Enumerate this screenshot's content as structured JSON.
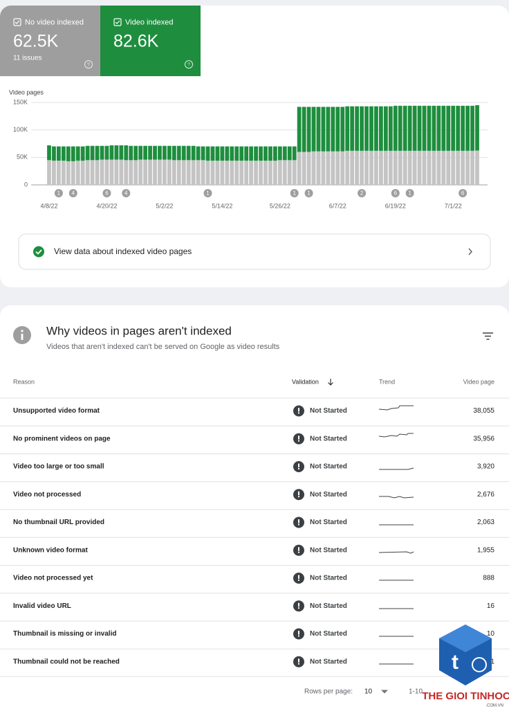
{
  "summary": [
    {
      "value": "62.5K",
      "note": "11 issues"
    },
    {
      "value": "82.6K"
    }
  ],
  "chart_data": {
    "type": "bar",
    "stacked": true,
    "y_label": "Video pages",
    "categories": [
      "4/8/22",
      null,
      null,
      null,
      null,
      null,
      null,
      null,
      null,
      null,
      null,
      null,
      "4/20/22",
      null,
      null,
      null,
      null,
      null,
      null,
      null,
      null,
      null,
      null,
      null,
      "5/2/22",
      null,
      null,
      null,
      null,
      null,
      null,
      null,
      null,
      null,
      null,
      null,
      "5/14/22",
      null,
      null,
      null,
      null,
      null,
      null,
      null,
      null,
      null,
      null,
      null,
      "5/26/22",
      null,
      null,
      null,
      null,
      null,
      null,
      null,
      null,
      null,
      null,
      null,
      "6/7/22",
      null,
      null,
      null,
      null,
      null,
      null,
      null,
      null,
      null,
      null,
      null,
      "6/19/22",
      null,
      null,
      null,
      null,
      null,
      null,
      null,
      null,
      null,
      null,
      null,
      "7/1/22",
      null,
      null,
      null,
      null,
      null
    ],
    "series": [
      {
        "name": "No video indexed",
        "color": "#c4c4c4",
        "values": [
          45000,
          44000,
          44000,
          44000,
          43000,
          43000,
          44000,
          44000,
          45000,
          45000,
          45000,
          46000,
          46000,
          46000,
          46000,
          46000,
          45000,
          45000,
          45000,
          46000,
          46000,
          46000,
          46000,
          46000,
          46000,
          46000,
          45000,
          45000,
          45000,
          45000,
          45000,
          45000,
          45000,
          44000,
          44000,
          44000,
          44000,
          44000,
          44000,
          44000,
          44000,
          44000,
          44000,
          44000,
          44000,
          44000,
          44000,
          44000,
          45000,
          45000,
          45000,
          45000,
          60000,
          60000,
          60000,
          61000,
          61000,
          61000,
          61000,
          61000,
          61000,
          61000,
          62000,
          62000,
          62000,
          62000,
          62000,
          62000,
          62000,
          62000,
          62000,
          62000,
          62000,
          62000,
          62000,
          62000,
          62000,
          62000,
          62000,
          62000,
          62000,
          62000,
          62000,
          62000,
          62000,
          62000,
          62000,
          62000,
          62000,
          62500
        ]
      },
      {
        "name": "Video indexed",
        "color": "#1e8e3e",
        "values": [
          27000,
          26000,
          26000,
          26000,
          27000,
          27000,
          26000,
          26000,
          26000,
          26000,
          26000,
          25000,
          25000,
          26000,
          26000,
          26000,
          27000,
          26000,
          26000,
          25000,
          25000,
          25000,
          25000,
          25000,
          25000,
          25000,
          26000,
          26000,
          26000,
          26000,
          26000,
          25000,
          25000,
          26000,
          26000,
          26000,
          26000,
          26000,
          26000,
          26000,
          26000,
          26000,
          26000,
          26000,
          26000,
          26000,
          26000,
          26000,
          25000,
          25000,
          25000,
          25000,
          82000,
          82000,
          82000,
          81000,
          81000,
          81000,
          81000,
          81000,
          81000,
          81000,
          81000,
          81000,
          81000,
          81000,
          81000,
          81000,
          81000,
          81000,
          81000,
          81000,
          82000,
          82000,
          82000,
          82000,
          82000,
          82000,
          82000,
          82000,
          82000,
          82000,
          82000,
          82000,
          82000,
          82000,
          82000,
          82000,
          82000,
          82600
        ]
      }
    ],
    "ylim": [
      0,
      150000
    ],
    "yticks": [
      0,
      {
        "value": 50000,
        "label": "50K"
      },
      {
        "value": 100000,
        "label": "100K"
      },
      {
        "value": 150000,
        "label": "150K"
      }
    ],
    "grid": true,
    "annotations": [
      {
        "at": 2,
        "label": 1
      },
      {
        "at": 5,
        "label": 4
      },
      {
        "at": 12,
        "label": 6
      },
      {
        "at": 16,
        "label": 4
      },
      {
        "at": 33,
        "label": 1
      },
      {
        "at": 51,
        "label": 1
      },
      {
        "at": 54,
        "label": 1
      },
      {
        "at": 65,
        "label": 2
      },
      {
        "at": 72,
        "label": 6
      },
      {
        "at": 75,
        "label": 1
      },
      {
        "at": 86,
        "label": 6
      }
    ]
  },
  "link": "View data about indexed video pages",
  "section": {
    "title": "Why videos in pages aren't indexed",
    "subtitle": "Videos that aren't indexed can't be served on Google as video results"
  },
  "table": {
    "columns": [
      "Reason",
      "Validation",
      "Trend",
      "Video page"
    ],
    "rows": [
      [
        "Unsupported video format",
        "Not Started",
        "38,055"
      ],
      [
        "No prominent videos on page",
        "Not Started",
        "35,956"
      ],
      [
        "Video too large or too small",
        "Not Started",
        "3,920"
      ],
      [
        "Video not processed",
        "Not Started",
        "2,676"
      ],
      [
        "No thumbnail URL provided",
        "Not Started",
        "2,063"
      ],
      [
        "Unknown video format",
        "Not Started",
        "1,955"
      ],
      [
        "Video not processed yet",
        "Not Started",
        "888"
      ],
      [
        "Invalid video URL",
        "Not Started",
        "16"
      ],
      [
        "Thumbnail is missing or invalid",
        "Not Started",
        "10"
      ],
      [
        "Thumbnail could not be reached",
        "Not Started",
        "1"
      ]
    ]
  },
  "pagination": {
    "label": "Rows per page:",
    "value": "10",
    "range": "1-10"
  },
  "watermark": {
    "brand": "THE GIOI TINHOC",
    "domain": ".COM.VN"
  }
}
